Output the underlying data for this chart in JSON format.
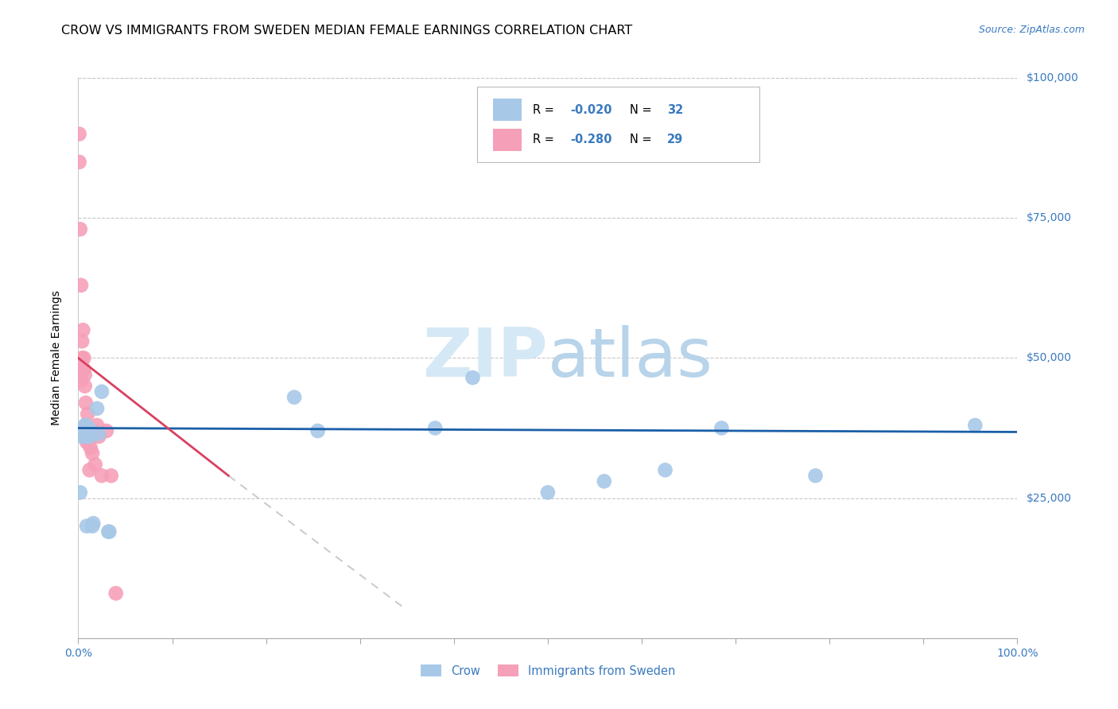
{
  "title": "CROW VS IMMIGRANTS FROM SWEDEN MEDIAN FEMALE EARNINGS CORRELATION CHART",
  "source": "Source: ZipAtlas.com",
  "ylabel": "Median Female Earnings",
  "xlim": [
    0,
    1.0
  ],
  "ylim": [
    0,
    100000
  ],
  "yticks": [
    0,
    25000,
    50000,
    75000,
    100000
  ],
  "ytick_labels": [
    "",
    "$25,000",
    "$50,000",
    "$75,000",
    "$100,000"
  ],
  "xtick_positions": [
    0.0,
    0.1,
    0.2,
    0.3,
    0.4,
    0.5,
    0.6,
    0.7,
    0.8,
    0.9,
    1.0
  ],
  "xtick_labels": [
    "0.0%",
    "",
    "",
    "",
    "",
    "",
    "",
    "",
    "",
    "",
    "100.0%"
  ],
  "legend1_label": "Crow",
  "legend2_label": "Immigrants from Sweden",
  "R_crow": -0.02,
  "N_crow": 32,
  "R_sweden": -0.28,
  "N_sweden": 29,
  "crow_color": "#a8c8e8",
  "sweden_color": "#f5a0b8",
  "crow_line_color": "#1a5fa8",
  "sweden_line_color": "#d94060",
  "crow_x": [
    0.002,
    0.003,
    0.004,
    0.005,
    0.006,
    0.006,
    0.007,
    0.007,
    0.008,
    0.008,
    0.009,
    0.01,
    0.01,
    0.011,
    0.012,
    0.015,
    0.016,
    0.02,
    0.022,
    0.025,
    0.032,
    0.033,
    0.23,
    0.255,
    0.38,
    0.42,
    0.5,
    0.56,
    0.625,
    0.685,
    0.785,
    0.955
  ],
  "crow_y": [
    26000,
    37000,
    36000,
    37500,
    36500,
    36000,
    38000,
    37500,
    38000,
    37000,
    20000,
    36500,
    36000,
    37500,
    36000,
    20000,
    20500,
    41000,
    36500,
    44000,
    19000,
    19000,
    43000,
    37000,
    37500,
    46500,
    26000,
    28000,
    30000,
    37500,
    29000,
    38000
  ],
  "sweden_x": [
    0.001,
    0.001,
    0.002,
    0.003,
    0.003,
    0.004,
    0.004,
    0.005,
    0.005,
    0.006,
    0.006,
    0.007,
    0.007,
    0.008,
    0.008,
    0.009,
    0.01,
    0.011,
    0.012,
    0.013,
    0.015,
    0.016,
    0.018,
    0.02,
    0.022,
    0.025,
    0.03,
    0.035,
    0.04
  ],
  "sweden_y": [
    85000,
    90000,
    73000,
    63000,
    46000,
    50000,
    53000,
    55000,
    48000,
    50000,
    48000,
    47000,
    45000,
    42000,
    37000,
    35000,
    40000,
    35000,
    30000,
    34000,
    33000,
    37000,
    31000,
    38000,
    36000,
    29000,
    37000,
    29000,
    8000
  ],
  "background_color": "#ffffff",
  "grid_color": "#c8c8c8",
  "title_fontsize": 11.5,
  "label_fontsize": 10,
  "tick_fontsize": 10,
  "source_fontsize": 9,
  "watermark_color": "#daeaf8",
  "axis_color": "#3a7abf",
  "legend_text_color": "#3a7abf"
}
